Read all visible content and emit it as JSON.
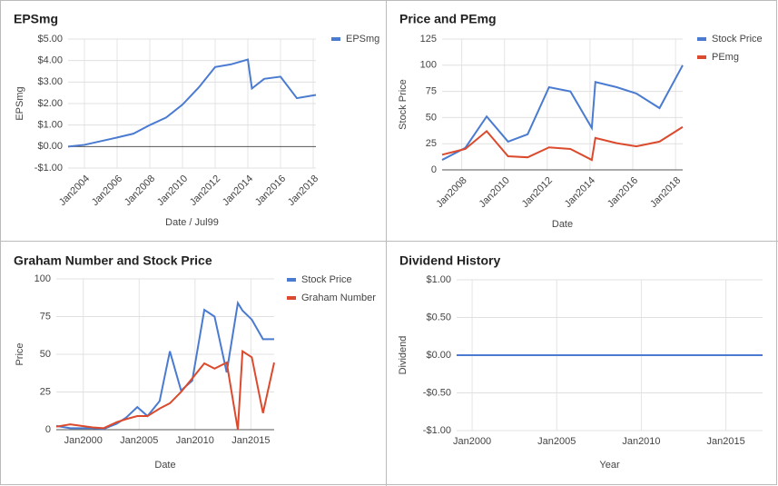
{
  "chart_data": [
    {
      "type": "line",
      "title": "EPSmg",
      "x_label": "Date / Jul99",
      "y_label": "EPSmg",
      "x": [
        "2003-01",
        "2004-01",
        "2006-01",
        "2007-01",
        "2008-01",
        "2009-01",
        "2010-01",
        "2011-01",
        "2012-01",
        "2013-01",
        "2014-01",
        "2014-04",
        "2015-01",
        "2016-01",
        "2017-01",
        "2018-03"
      ],
      "series": [
        {
          "name": "EPSmg",
          "color": "#4a7bd0",
          "values": [
            0.0,
            0.08,
            0.42,
            0.6,
            1.0,
            1.35,
            1.95,
            2.75,
            3.7,
            3.83,
            4.05,
            2.7,
            3.15,
            3.25,
            2.25,
            2.4
          ]
        }
      ],
      "xlim": [
        "2003-01",
        "2018-03"
      ],
      "xticks": [
        {
          "value": "2004-01",
          "label": "Jan2004"
        },
        {
          "value": "2006-01",
          "label": "Jan2006"
        },
        {
          "value": "2008-01",
          "label": "Jan2008"
        },
        {
          "value": "2010-01",
          "label": "Jan2010"
        },
        {
          "value": "2012-01",
          "label": "Jan2012"
        },
        {
          "value": "2014-01",
          "label": "Jan2014"
        },
        {
          "value": "2016-01",
          "label": "Jan2016"
        },
        {
          "value": "2018-01",
          "label": "Jan2018"
        }
      ],
      "ylim": [
        -1,
        5
      ],
      "yticks": [
        {
          "value": 5,
          "label": "$5.00"
        },
        {
          "value": 4,
          "label": "$4.00"
        },
        {
          "value": 3,
          "label": "$3.00"
        },
        {
          "value": 2,
          "label": "$2.00"
        },
        {
          "value": 1,
          "label": "$1.00"
        },
        {
          "value": 0,
          "label": "$0.00"
        },
        {
          "value": -1,
          "label": "-$1.00"
        }
      ],
      "grid": true,
      "legend": "right"
    },
    {
      "type": "line",
      "title": "Price and PEmg",
      "x_label": "Date",
      "y_label": "Stock Price",
      "x": [
        "2007-02",
        "2008-03",
        "2009-03",
        "2010-03",
        "2011-02",
        "2012-02",
        "2013-02",
        "2014-02",
        "2014-04",
        "2015-04",
        "2016-03",
        "2017-04",
        "2018-05"
      ],
      "series": [
        {
          "name": "Stock Price",
          "color": "#4a7bd0",
          "values": [
            9.5,
            21,
            51,
            27,
            34,
            79,
            75,
            40,
            84,
            79,
            73,
            59,
            100
          ]
        },
        {
          "name": "PEmg",
          "color": "#dc4a2d",
          "values": [
            14.5,
            20,
            37,
            13,
            12,
            21.5,
            20,
            9.5,
            30.5,
            25.5,
            22.5,
            27,
            41
          ]
        }
      ],
      "xlim": [
        "2007-02",
        "2018-05"
      ],
      "xticks": [
        {
          "value": "2008-01",
          "label": "Jan2008"
        },
        {
          "value": "2010-01",
          "label": "Jan2010"
        },
        {
          "value": "2012-01",
          "label": "Jan2012"
        },
        {
          "value": "2014-01",
          "label": "Jan2014"
        },
        {
          "value": "2016-01",
          "label": "Jan2016"
        },
        {
          "value": "2018-01",
          "label": "Jan2018"
        }
      ],
      "ylim": [
        0,
        125
      ],
      "yticks": [
        0,
        25,
        50,
        75,
        100,
        125
      ],
      "grid": true,
      "legend": "right"
    },
    {
      "type": "line",
      "title": "Graham Number and Stock Price",
      "x_label": "Date",
      "y_label": "Price",
      "x": [
        "1997-08",
        "1998-11",
        "2000-11",
        "2001-11",
        "2003-01",
        "2003-11",
        "2004-11",
        "2005-10",
        "2006-11",
        "2007-10",
        "2008-10",
        "2009-10",
        "2010-11",
        "2011-10",
        "2012-11",
        "2013-11",
        "2014-04",
        "2015-02",
        "2016-02",
        "2017-02"
      ],
      "series": [
        {
          "name": "Stock Price",
          "color": "#4a7bd0",
          "values": [
            2.5,
            1,
            1,
            0.5,
            4,
            8,
            15,
            9,
            19,
            52,
            26,
            32.5,
            79.5,
            75,
            38,
            84,
            79,
            73,
            60,
            60
          ]
        },
        {
          "name": "Graham Number",
          "color": "#dc4a2d",
          "values": [
            2,
            3.5,
            1.5,
            1,
            5,
            7,
            9,
            9,
            14,
            17.5,
            25,
            34,
            44,
            40.5,
            44.5,
            0,
            52,
            48,
            11,
            44.5
          ]
        }
      ],
      "xlim": [
        "1997-08",
        "2017-02"
      ],
      "xticks": [
        {
          "value": "2000-01",
          "label": "Jan2000"
        },
        {
          "value": "2005-01",
          "label": "Jan2005"
        },
        {
          "value": "2010-01",
          "label": "Jan2010"
        },
        {
          "value": "2015-01",
          "label": "Jan2015"
        }
      ],
      "ylim": [
        0,
        100
      ],
      "yticks": [
        0,
        25,
        50,
        75,
        100
      ],
      "grid": true,
      "legend": "right"
    },
    {
      "type": "line",
      "title": "Dividend History",
      "x_label": "Year",
      "y_label": "Dividend",
      "x": [
        "1999-02",
        "2017-03"
      ],
      "series": [
        {
          "color": "#4a7bd0",
          "values": [
            0,
            0
          ]
        }
      ],
      "xlim": [
        "1999-02",
        "2017-03"
      ],
      "xticks": [
        {
          "value": "2000-01",
          "label": "Jan2000"
        },
        {
          "value": "2005-01",
          "label": "Jan2005"
        },
        {
          "value": "2010-01",
          "label": "Jan2010"
        },
        {
          "value": "2015-01",
          "label": "Jan2015"
        }
      ],
      "ylim": [
        -1,
        1
      ],
      "yticks": [
        {
          "value": 1,
          "label": "$1.00"
        },
        {
          "value": 0.5,
          "label": "$0.50"
        },
        {
          "value": 0,
          "label": "$0.00"
        },
        {
          "value": -0.5,
          "label": "-$0.50"
        },
        {
          "value": -1,
          "label": "-$1.00"
        }
      ],
      "grid": true
    }
  ]
}
